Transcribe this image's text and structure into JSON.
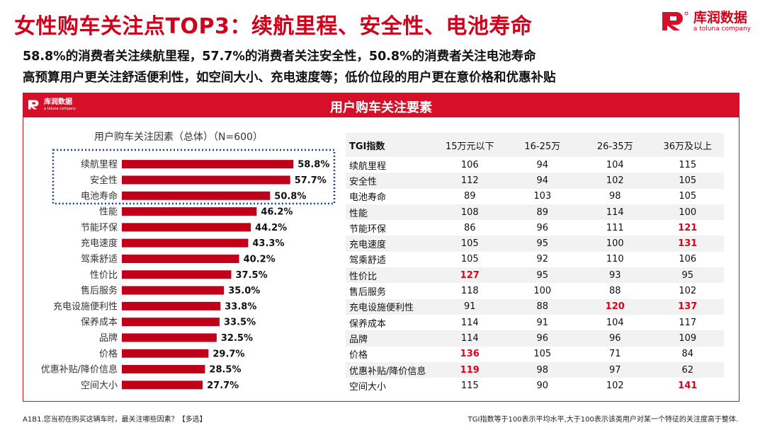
{
  "header": {
    "title": "女性购车关注点TOP3：续航里程、安全性、电池寿命",
    "line1": "58.8%的消费者关注续航里程，57.7%的消费者关注安全性，50.8%的消费者关注电池寿命",
    "line2": "高预算用户更关注舒适便利性，如空间大小、充电速度等；低价位段的用户更在意价格和优惠补贴"
  },
  "logo": {
    "name": "库润数据",
    "sub": "a toluna company"
  },
  "panel": {
    "title": "用户购车关注要素",
    "logo_name": "库润数据",
    "logo_sub": "a toluna company"
  },
  "colors": {
    "brand": "#d7102a",
    "bar": "#c00018",
    "highlight": "#e0001a",
    "dotted": "#1f3f8f"
  },
  "chart_data": {
    "type": "bar",
    "orientation": "horizontal",
    "title": "用户购车关注因素（总体）（N=600）",
    "categories": [
      "续航里程",
      "安全性",
      "电池寿命",
      "性能",
      "节能环保",
      "充电速度",
      "驾乘舒适",
      "性价比",
      "售后服务",
      "充电设施便利性",
      "保养成本",
      "品牌",
      "价格",
      "优惠补贴/降价信息",
      "空间大小"
    ],
    "values": [
      58.8,
      57.7,
      50.8,
      46.2,
      44.2,
      43.3,
      40.2,
      37.5,
      35.0,
      33.8,
      33.5,
      32.5,
      29.7,
      28.5,
      27.7
    ],
    "value_labels": [
      "58.8%",
      "57.7%",
      "50.8%",
      "46.2%",
      "44.2%",
      "43.3%",
      "40.2%",
      "37.5%",
      "35.0%",
      "33.8%",
      "33.5%",
      "32.5%",
      "29.7%",
      "28.5%",
      "27.7%"
    ],
    "unit": "%",
    "highlighted_top": 3
  },
  "tgi": {
    "headers": [
      "TGI指数",
      "15万元以下",
      "16-25万",
      "26-35万",
      "36万及以上"
    ],
    "rows": [
      {
        "label": "续航里程",
        "values": [
          "106",
          "94",
          "104",
          "115"
        ],
        "hi": [
          false,
          false,
          false,
          false
        ]
      },
      {
        "label": "安全性",
        "values": [
          "112",
          "94",
          "102",
          "105"
        ],
        "hi": [
          false,
          false,
          false,
          false
        ]
      },
      {
        "label": "电池寿命",
        "values": [
          "89",
          "103",
          "98",
          "105"
        ],
        "hi": [
          false,
          false,
          false,
          false
        ]
      },
      {
        "label": "性能",
        "values": [
          "108",
          "89",
          "114",
          "100"
        ],
        "hi": [
          false,
          false,
          false,
          false
        ]
      },
      {
        "label": "节能环保",
        "values": [
          "86",
          "96",
          "111",
          "121"
        ],
        "hi": [
          false,
          false,
          false,
          true
        ]
      },
      {
        "label": "充电速度",
        "values": [
          "105",
          "95",
          "100",
          "131"
        ],
        "hi": [
          false,
          false,
          false,
          true
        ]
      },
      {
        "label": "驾乘舒适",
        "values": [
          "105",
          "92",
          "110",
          "106"
        ],
        "hi": [
          false,
          false,
          false,
          false
        ]
      },
      {
        "label": "性价比",
        "values": [
          "127",
          "95",
          "93",
          "95"
        ],
        "hi": [
          true,
          false,
          false,
          false
        ]
      },
      {
        "label": "售后服务",
        "values": [
          "118",
          "100",
          "88",
          "102"
        ],
        "hi": [
          false,
          false,
          false,
          false
        ]
      },
      {
        "label": "充电设施便利性",
        "values": [
          "91",
          "88",
          "120",
          "137"
        ],
        "hi": [
          false,
          false,
          true,
          true
        ]
      },
      {
        "label": "保养成本",
        "values": [
          "114",
          "91",
          "104",
          "117"
        ],
        "hi": [
          false,
          false,
          false,
          false
        ]
      },
      {
        "label": "品牌",
        "values": [
          "114",
          "96",
          "96",
          "109"
        ],
        "hi": [
          false,
          false,
          false,
          false
        ]
      },
      {
        "label": "价格",
        "values": [
          "136",
          "105",
          "71",
          "84"
        ],
        "hi": [
          true,
          false,
          false,
          false
        ]
      },
      {
        "label": "优惠补贴/降价信息",
        "values": [
          "119",
          "98",
          "97",
          "62"
        ],
        "hi": [
          true,
          false,
          false,
          false
        ]
      },
      {
        "label": "空间大小",
        "values": [
          "115",
          "90",
          "102",
          "141"
        ],
        "hi": [
          false,
          false,
          false,
          true
        ]
      }
    ]
  },
  "footer": {
    "left": "A1B1.您当初在购买这辆车时，最关注哪些因素？【多选】",
    "right": "TGI指数等于100表示平均水平,大于100表示该类用户对某一个特征的关注度高于整体."
  }
}
